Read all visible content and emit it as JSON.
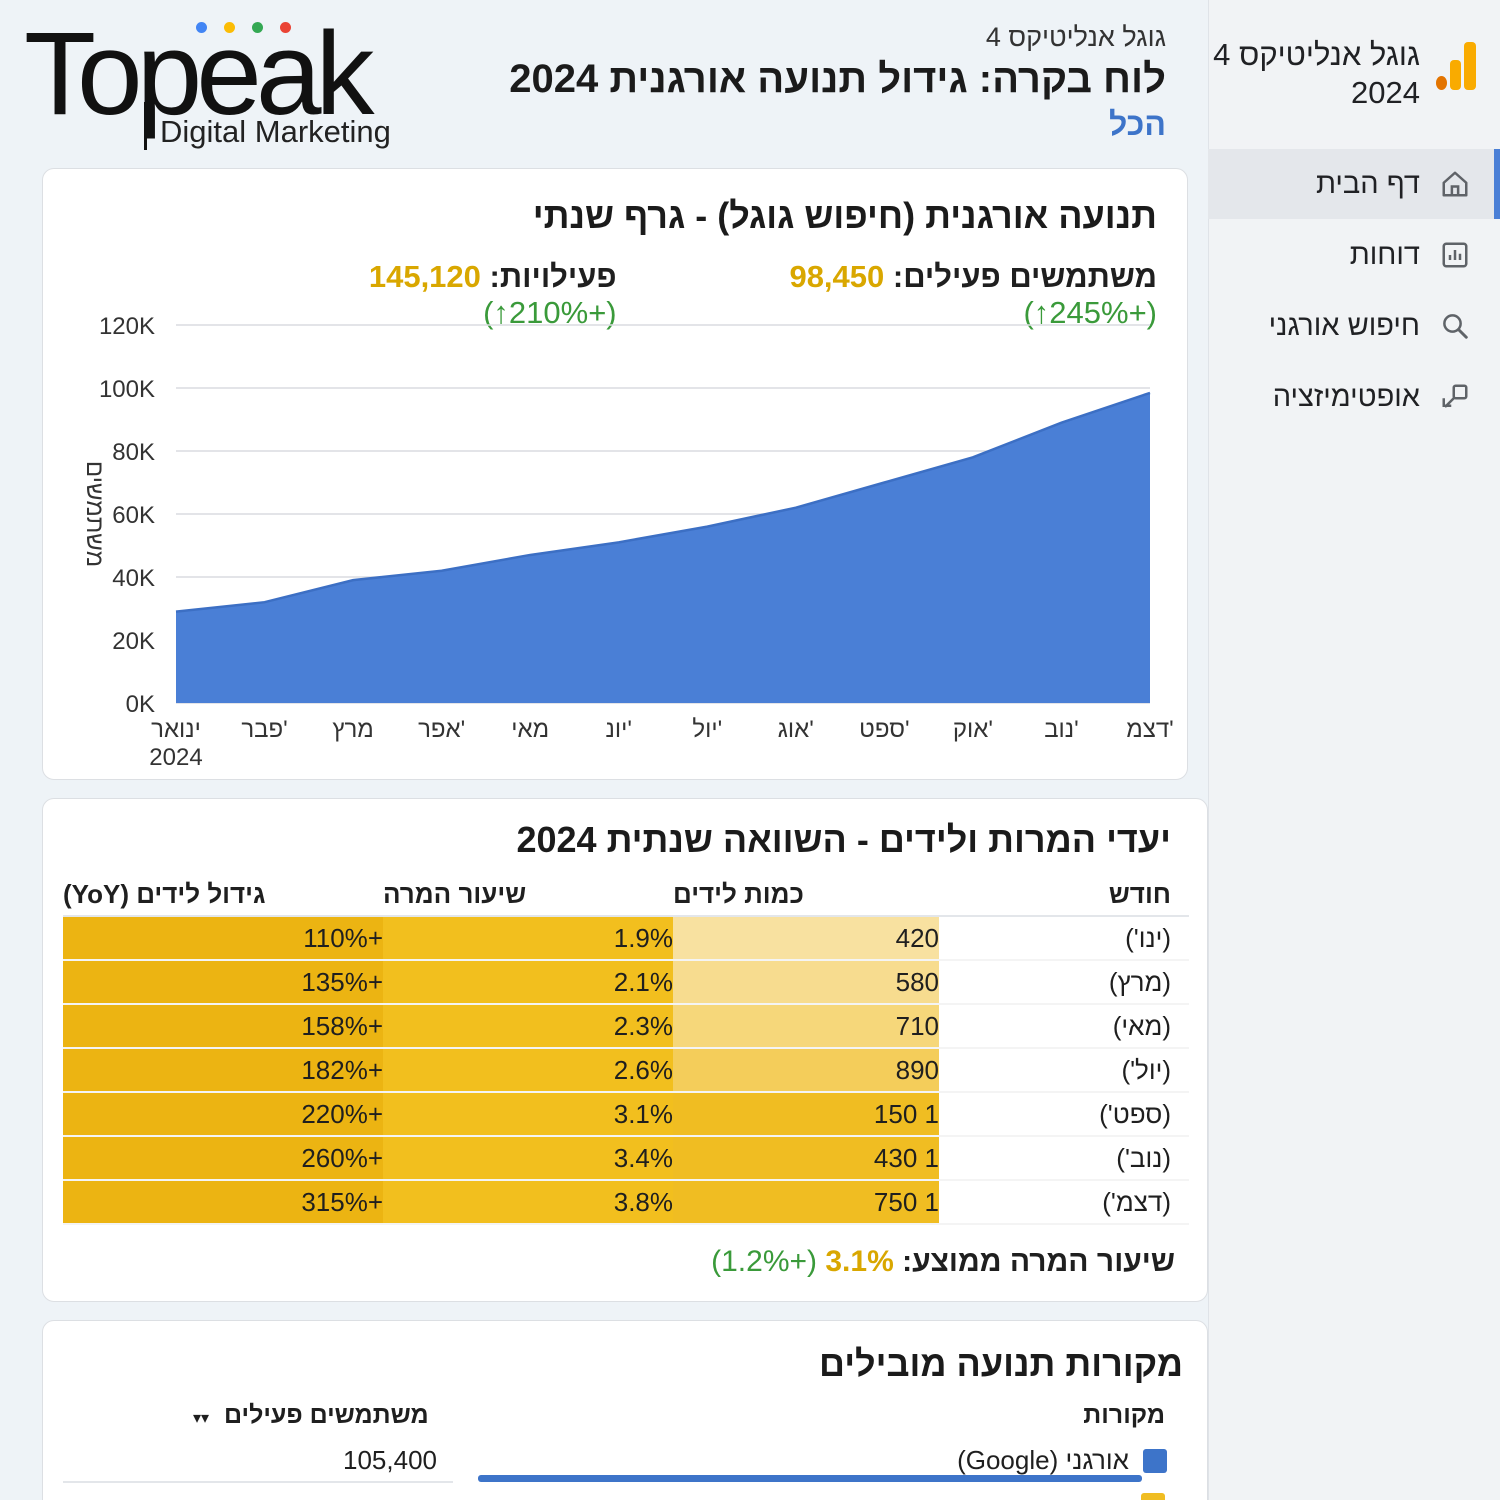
{
  "brand": {
    "name": "Topeak",
    "tagline": "Digital Marketing",
    "dot_colors": [
      "#4285f4",
      "#fbbc05",
      "#34a853",
      "#ea4335"
    ]
  },
  "sidebar": {
    "title_line1": "גוגל אנליטיקס 4",
    "title_line2": "2024",
    "items": [
      {
        "label": "דף הבית",
        "icon": "home-icon",
        "active": true
      },
      {
        "label": "דוחות",
        "icon": "bar-chart-icon",
        "active": false
      },
      {
        "label": "חיפוש אורגני",
        "icon": "search-icon",
        "active": false
      },
      {
        "label": "אופטימיזציה",
        "icon": "optimize-icon",
        "active": false
      }
    ]
  },
  "header": {
    "subtitle": "גוגל אנליטיקס 4",
    "title": "לוח בקרה: גידול תנועה אורגנית 2024",
    "filter_link": "הכל"
  },
  "traffic_card": {
    "title": "תנועה אורגנית (חיפוש גוגל) - גרף שנתי",
    "stats": [
      {
        "label": "משתמשים פעילים:",
        "value": "98,450",
        "growth": "(+245%↑)"
      },
      {
        "label": "פעילויות:",
        "value": "145,120",
        "growth": "(+210%↑)"
      }
    ]
  },
  "chart_data": {
    "type": "area",
    "title": "תנועה אורגנית (חיפוש גוגל) - גרף שנתי",
    "ylabel": "משתמשים",
    "xlabel": "",
    "categories": [
      "ינואר 2024",
      "פבר'",
      "מרץ",
      "אפר'",
      "מאי",
      "יונ'",
      "יול'",
      "אוג'",
      "ספט'",
      "אוק'",
      "נוב'",
      "דצמ'"
    ],
    "values": [
      29000,
      32000,
      39000,
      42000,
      47000,
      51000,
      56000,
      62000,
      70000,
      78000,
      89000,
      98450
    ],
    "ylim": [
      0,
      120000
    ],
    "yticks": [
      "0K",
      "20K",
      "40K",
      "60K",
      "80K",
      "100K",
      "120K"
    ],
    "ytick_values": [
      0,
      20000,
      40000,
      60000,
      80000,
      100000,
      120000
    ],
    "color": "#4a7fd6",
    "grid": true
  },
  "conversions_card": {
    "title": "יעדי המרות ולידים - השוואה שנתית 2024",
    "columns": [
      "חודש",
      "כמות לידים",
      "שיעור המרה",
      "גידול לידים (YoY)"
    ],
    "rows": [
      {
        "month": "(ינו')",
        "leads": "420",
        "rate": "1.9%",
        "growth": "+110%"
      },
      {
        "month": "(מרץ)",
        "leads": "580",
        "rate": "2.1%",
        "growth": "+135%"
      },
      {
        "month": "(מאי)",
        "leads": "710",
        "rate": "2.3%",
        "growth": "+158%"
      },
      {
        "month": "(יול')",
        "leads": "890",
        "rate": "2.6%",
        "growth": "+182%"
      },
      {
        "month": "(ספט')",
        "leads": "1 150",
        "rate": "3.1%",
        "growth": "+220%"
      },
      {
        "month": "(נוב')",
        "leads": "1 430",
        "rate": "3.4%",
        "growth": "+260%"
      },
      {
        "month": "(דצמ')",
        "leads": "1 750",
        "rate": "3.8%",
        "growth": "+315%"
      }
    ],
    "summary_label": "שיעור המרה ממוצע:",
    "summary_value": "3.1%",
    "summary_growth": "(+1.2%)",
    "lead_shades": [
      "#f8e1a0",
      "#f7dc8f",
      "#f6d77a",
      "#f4cd5a",
      "#f0bd22",
      "#f0bd22",
      "#f0bd22"
    ]
  },
  "sources_card": {
    "title": "מקורות תנועה מובילים",
    "col_sources": "מקורות",
    "col_users": "משתמשים פעילים",
    "sort_indicator": "▾▾",
    "rows": [
      {
        "name": "אורגני (Google)",
        "users": "105,400",
        "color": "#3d74c9",
        "share": 0.97
      }
    ]
  }
}
